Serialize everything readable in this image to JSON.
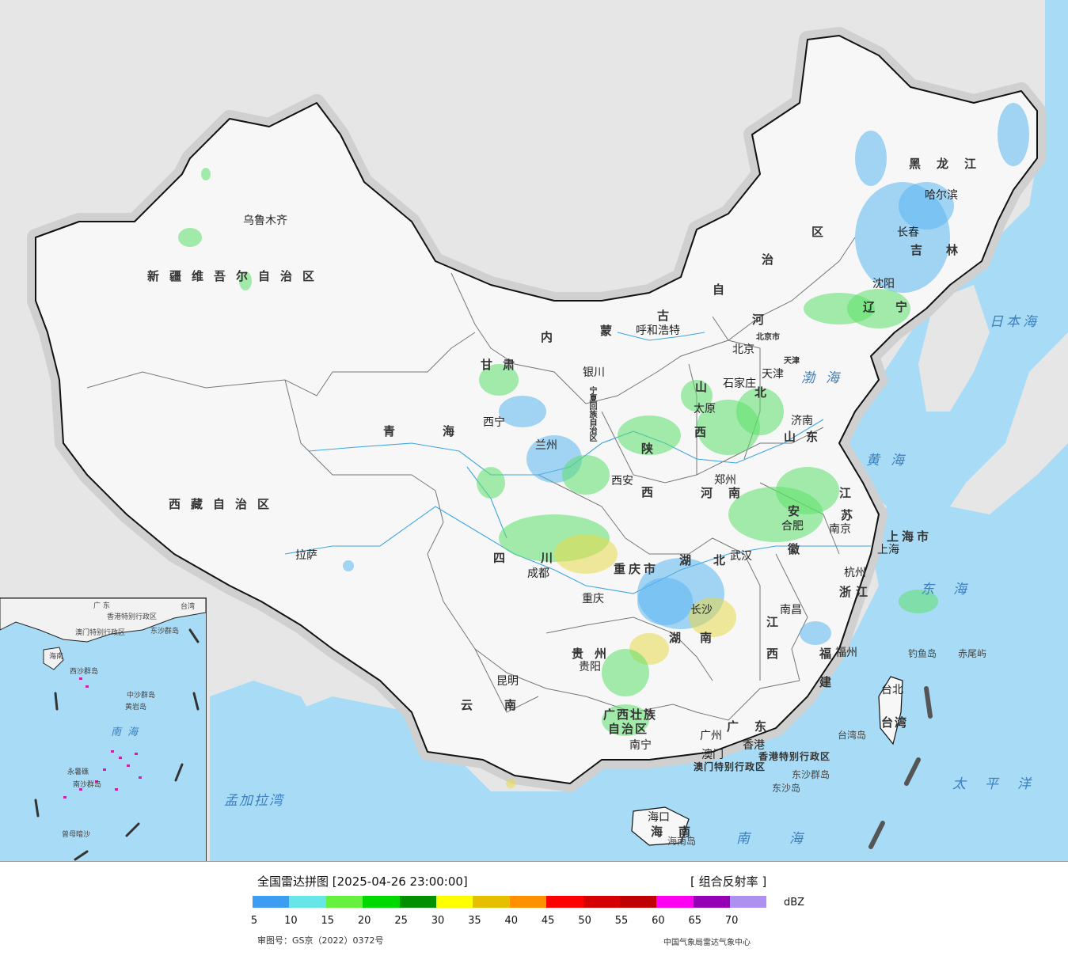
{
  "map": {
    "provinces": [
      {
        "id": "xinjiang",
        "text": "新疆维吾尔自治区"
      },
      {
        "id": "xizang",
        "text": "西藏自治区"
      },
      {
        "id": "qinghai",
        "text": "青海"
      },
      {
        "id": "gansu",
        "text": "甘肃"
      },
      {
        "id": "neimenggu-1",
        "text": "内"
      },
      {
        "id": "neimenggu-2",
        "text": "蒙"
      },
      {
        "id": "neimenggu-3",
        "text": "古"
      },
      {
        "id": "neimenggu-4",
        "text": "自"
      },
      {
        "id": "neimenggu-5",
        "text": "治"
      },
      {
        "id": "neimenggu-6",
        "text": "区"
      },
      {
        "id": "heilongjiang",
        "text": "黑龙江"
      },
      {
        "id": "jilin",
        "text": "吉林"
      },
      {
        "id": "liaoning",
        "text": "辽宁"
      },
      {
        "id": "hebei-1",
        "text": "河"
      },
      {
        "id": "hebei-2",
        "text": "北"
      },
      {
        "id": "shanxi-1",
        "text": "山"
      },
      {
        "id": "shanxi-2",
        "text": "西"
      },
      {
        "id": "shaanxi-1",
        "text": "陕"
      },
      {
        "id": "shaanxi-2",
        "text": "西"
      },
      {
        "id": "shandong",
        "text": "山东"
      },
      {
        "id": "henan",
        "text": "河南"
      },
      {
        "id": "jiangsu-1",
        "text": "江"
      },
      {
        "id": "jiangsu-2",
        "text": "苏"
      },
      {
        "id": "anhui-1",
        "text": "安"
      },
      {
        "id": "anhui-2",
        "text": "徽"
      },
      {
        "id": "shanghai",
        "text": "上海市"
      },
      {
        "id": "zhejiang",
        "text": "浙江"
      },
      {
        "id": "sichuan",
        "text": "四川"
      },
      {
        "id": "chongqing",
        "text": "重庆市"
      },
      {
        "id": "hubei",
        "text": "湖北"
      },
      {
        "id": "hunan-1",
        "text": "湖"
      },
      {
        "id": "hunan-2",
        "text": "南"
      },
      {
        "id": "jiangxi-1",
        "text": "江"
      },
      {
        "id": "jiangxi-2",
        "text": "西"
      },
      {
        "id": "fujian-1",
        "text": "福"
      },
      {
        "id": "fujian-2",
        "text": "建"
      },
      {
        "id": "guizhou",
        "text": "贵州"
      },
      {
        "id": "yunnan",
        "text": "云南"
      },
      {
        "id": "guangxi-1",
        "text": "广西壮族"
      },
      {
        "id": "guangxi-2",
        "text": "自治区"
      },
      {
        "id": "guangdong",
        "text": "广东"
      },
      {
        "id": "hainan",
        "text": "海南"
      },
      {
        "id": "taiwan",
        "text": "台湾"
      },
      {
        "id": "hongkong",
        "text": "香港特别行政区"
      },
      {
        "id": "macau",
        "text": "澳门特别行政区"
      },
      {
        "id": "ningxia",
        "text": "宁夏回族自治区"
      },
      {
        "id": "beijing",
        "text": "北京市"
      },
      {
        "id": "tianjin",
        "text": "天津"
      }
    ],
    "cities": [
      {
        "id": "urumqi",
        "text": "乌鲁木齐"
      },
      {
        "id": "lhasa",
        "text": "拉萨"
      },
      {
        "id": "xining",
        "text": "西宁"
      },
      {
        "id": "lanzhou",
        "text": "兰州"
      },
      {
        "id": "yinchuan",
        "text": "银川"
      },
      {
        "id": "hohhot",
        "text": "呼和浩特"
      },
      {
        "id": "harbin",
        "text": "哈尔滨"
      },
      {
        "id": "changchun",
        "text": "长春"
      },
      {
        "id": "shenyang",
        "text": "沈阳"
      },
      {
        "id": "beijing-city",
        "text": "北京"
      },
      {
        "id": "tianjin-city",
        "text": "天津"
      },
      {
        "id": "shijiazhuang",
        "text": "石家庄"
      },
      {
        "id": "taiyuan",
        "text": "太原"
      },
      {
        "id": "jinan",
        "text": "济南"
      },
      {
        "id": "xian",
        "text": "西安"
      },
      {
        "id": "zhengzhou",
        "text": "郑州"
      },
      {
        "id": "hefei",
        "text": "合肥"
      },
      {
        "id": "nanjing",
        "text": "南京"
      },
      {
        "id": "shanghai-city",
        "text": "上海"
      },
      {
        "id": "hangzhou",
        "text": "杭州"
      },
      {
        "id": "wuhan",
        "text": "武汉"
      },
      {
        "id": "chengdu",
        "text": "成都"
      },
      {
        "id": "chongqing-city",
        "text": "重庆"
      },
      {
        "id": "changsha",
        "text": "长沙"
      },
      {
        "id": "nanchang",
        "text": "南昌"
      },
      {
        "id": "fuzhou",
        "text": "福州"
      },
      {
        "id": "guiyang",
        "text": "贵阳"
      },
      {
        "id": "kunming",
        "text": "昆明"
      },
      {
        "id": "nanning",
        "text": "南宁"
      },
      {
        "id": "guangzhou",
        "text": "广州"
      },
      {
        "id": "aomen",
        "text": "澳门"
      },
      {
        "id": "xianggang",
        "text": "香港"
      },
      {
        "id": "haikou",
        "text": "海口"
      },
      {
        "id": "taibei",
        "text": "台北"
      }
    ],
    "seas": [
      {
        "id": "bohai",
        "text": "渤海"
      },
      {
        "id": "huanghai",
        "text": "黄海"
      },
      {
        "id": "donghai",
        "text": "东海"
      },
      {
        "id": "nanhai",
        "text": "南海"
      },
      {
        "id": "ribenhai",
        "text": "日本海"
      },
      {
        "id": "taipingyang",
        "text": "太平洋"
      },
      {
        "id": "mengjialawan",
        "text": "孟加拉湾"
      }
    ],
    "islands": [
      {
        "id": "diaoyudao",
        "text": "钓鱼岛"
      },
      {
        "id": "chiweiyu",
        "text": "赤尾屿"
      },
      {
        "id": "taiwandao",
        "text": "台湾岛"
      },
      {
        "id": "hainandao",
        "text": "海南岛"
      },
      {
        "id": "dongshaqundao",
        "text": "东沙群岛"
      },
      {
        "id": "dongshadao",
        "text": "东沙岛"
      }
    ],
    "inset": [
      {
        "id": "inset-guangdong",
        "text": "广 东"
      },
      {
        "id": "inset-taiwan",
        "text": "台湾"
      },
      {
        "id": "inset-hainan",
        "text": "海南"
      },
      {
        "id": "inset-hk",
        "text": "香港特别行政区"
      },
      {
        "id": "inset-macau",
        "text": "澳门特别行政区"
      },
      {
        "id": "inset-dongsha",
        "text": "东沙群岛"
      },
      {
        "id": "inset-xisha",
        "text": "西沙群岛"
      },
      {
        "id": "inset-zhongsha",
        "text": "中沙群岛"
      },
      {
        "id": "inset-huangyan",
        "text": "黄岩岛"
      },
      {
        "id": "inset-nanhai",
        "text": "南海"
      },
      {
        "id": "inset-nansha",
        "text": "南沙群岛"
      },
      {
        "id": "inset-yongshu",
        "text": "永暑礁"
      },
      {
        "id": "inset-zengmu",
        "text": "曾母暗沙"
      }
    ]
  },
  "legend": {
    "title": "全国雷达拼图 [2025-04-26 23:00:00]",
    "product": "[ 组合反射率 ]",
    "unit": "dBZ",
    "colors": [
      "#3d9df0",
      "#66e6e6",
      "#66f040",
      "#00d800",
      "#009000",
      "#ffff00",
      "#e6c000",
      "#ff9000",
      "#ff0000",
      "#d60000",
      "#c00000",
      "#ff00f0",
      "#9600b4",
      "#ad90f0"
    ],
    "ticks": [
      "5",
      "10",
      "15",
      "20",
      "25",
      "30",
      "35",
      "40",
      "45",
      "50",
      "55",
      "60",
      "65",
      "70"
    ],
    "review_number": "审图号：GS京（2022）0372号",
    "source": "中国气象局雷达气象中心"
  }
}
